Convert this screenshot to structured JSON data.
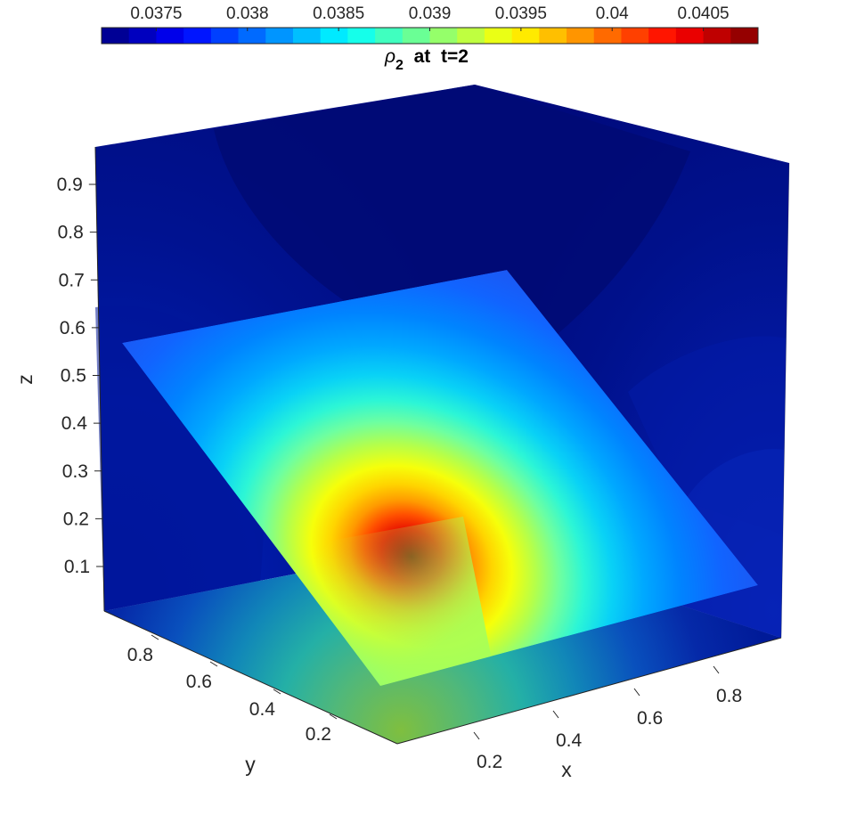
{
  "chart_data": {
    "type": "heatmap",
    "plot_kind": "3d-slice-contour",
    "title": {
      "symbol": "ρ",
      "subscript": "2",
      "suffix": "  at  t=2"
    },
    "xlabel": "x",
    "ylabel": "y",
    "zlabel": "z",
    "x_ticks": [
      "0.2",
      "0.4",
      "0.6",
      "0.8"
    ],
    "y_ticks": [
      "0.2",
      "0.4",
      "0.6",
      "0.8"
    ],
    "z_ticks": [
      "0.1",
      "0.2",
      "0.3",
      "0.4",
      "0.5",
      "0.6",
      "0.7",
      "0.8",
      "0.9"
    ],
    "xlim": [
      0,
      1
    ],
    "ylim": [
      0,
      1
    ],
    "zlim": [
      0,
      1
    ],
    "colorbar": {
      "location": "top",
      "colormap": "jet",
      "range": [
        0.0372,
        0.0408
      ],
      "levels": 24,
      "tick_labels": [
        "0.0375",
        "0.038",
        "0.0385",
        "0.039",
        "0.0395",
        "0.04",
        "0.0405"
      ]
    },
    "slices": [
      {
        "plane": "x = 1 (back wall)",
        "dominant_value": 0.0372
      },
      {
        "plane": "y = 1 (back wall)",
        "dominant_value": 0.0372
      },
      {
        "plane": "z = 0 (floor)",
        "value_range": [
          0.0374,
          0.039
        ]
      },
      {
        "plane": "oblique x + z = 1",
        "value_range": [
          0.0378,
          0.0407
        ],
        "peak_value": 0.0407
      }
    ],
    "colors": {
      "floor_front_corner": "#7fbf3f",
      "oblique_upper_edge": "#1e5bff",
      "peak": "#8b0000"
    }
  }
}
